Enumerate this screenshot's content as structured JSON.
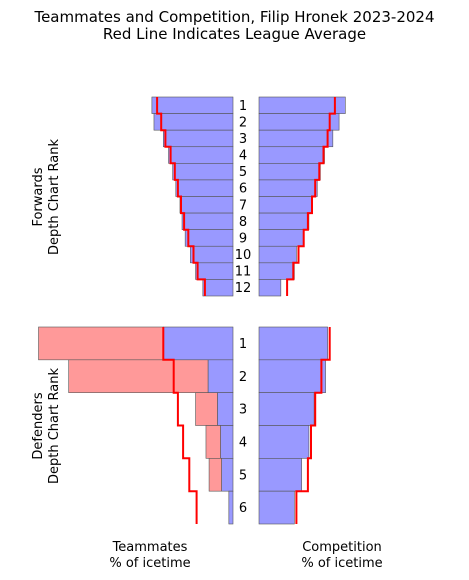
{
  "title": "Teammates and Competition, Filip Hronek 2023-2024",
  "subtitle": "Red Line Indicates League Average",
  "chart_data": {
    "type": "bar",
    "groups": [
      {
        "name": "Forwards",
        "ylabel_line1": "Forwards",
        "ylabel_line2": "Depth Chart Rank",
        "ranks": [
          "1",
          "2",
          "3",
          "4",
          "5",
          "6",
          "7",
          "8",
          "9",
          "10",
          "11",
          "12"
        ],
        "teammates_blue": [
          78,
          76,
          67,
          62,
          58,
          55,
          51,
          49,
          46,
          41,
          36,
          29
        ],
        "teammates_red_excess": [
          0,
          0,
          0,
          0,
          0,
          0,
          0,
          0,
          0,
          0,
          0,
          0
        ],
        "teammates_avg": [
          73,
          69,
          65,
          60,
          56,
          53,
          50,
          47,
          43,
          38,
          34,
          27
        ],
        "competition_blue": [
          83,
          77,
          71,
          63,
          59,
          56,
          51,
          48,
          43,
          36,
          34,
          21
        ],
        "competition_avg": [
          73,
          68,
          66,
          62,
          58,
          54,
          51,
          47,
          43,
          38,
          33,
          27
        ]
      },
      {
        "name": "Defenders",
        "ylabel_line1": "Defenders",
        "ylabel_line2": "Depth Chart Rank",
        "ranks": [
          "1",
          "2",
          "3",
          "4",
          "5",
          "6"
        ],
        "teammates_blue": [
          67,
          24,
          15,
          12,
          11,
          4
        ],
        "teammates_red_excess": [
          120,
          134,
          21,
          14,
          12,
          0
        ],
        "teammates_avg": [
          67,
          57,
          53,
          48,
          42,
          35
        ],
        "competition_blue": [
          66,
          64,
          53,
          48,
          41,
          34
        ],
        "competition_avg": [
          68,
          60,
          54,
          50,
          47,
          36
        ]
      }
    ],
    "xlabel_left_line1": "Teammates",
    "xlabel_left_line2": "% of icetime",
    "xlabel_right_line1": "Competition",
    "xlabel_right_line2": "% of icetime",
    "colors": {
      "bar": "#9999ff",
      "excess": "#ff9999",
      "average": "#ff0000",
      "edge": "#555555"
    },
    "xlim": [
      0,
      100
    ]
  }
}
